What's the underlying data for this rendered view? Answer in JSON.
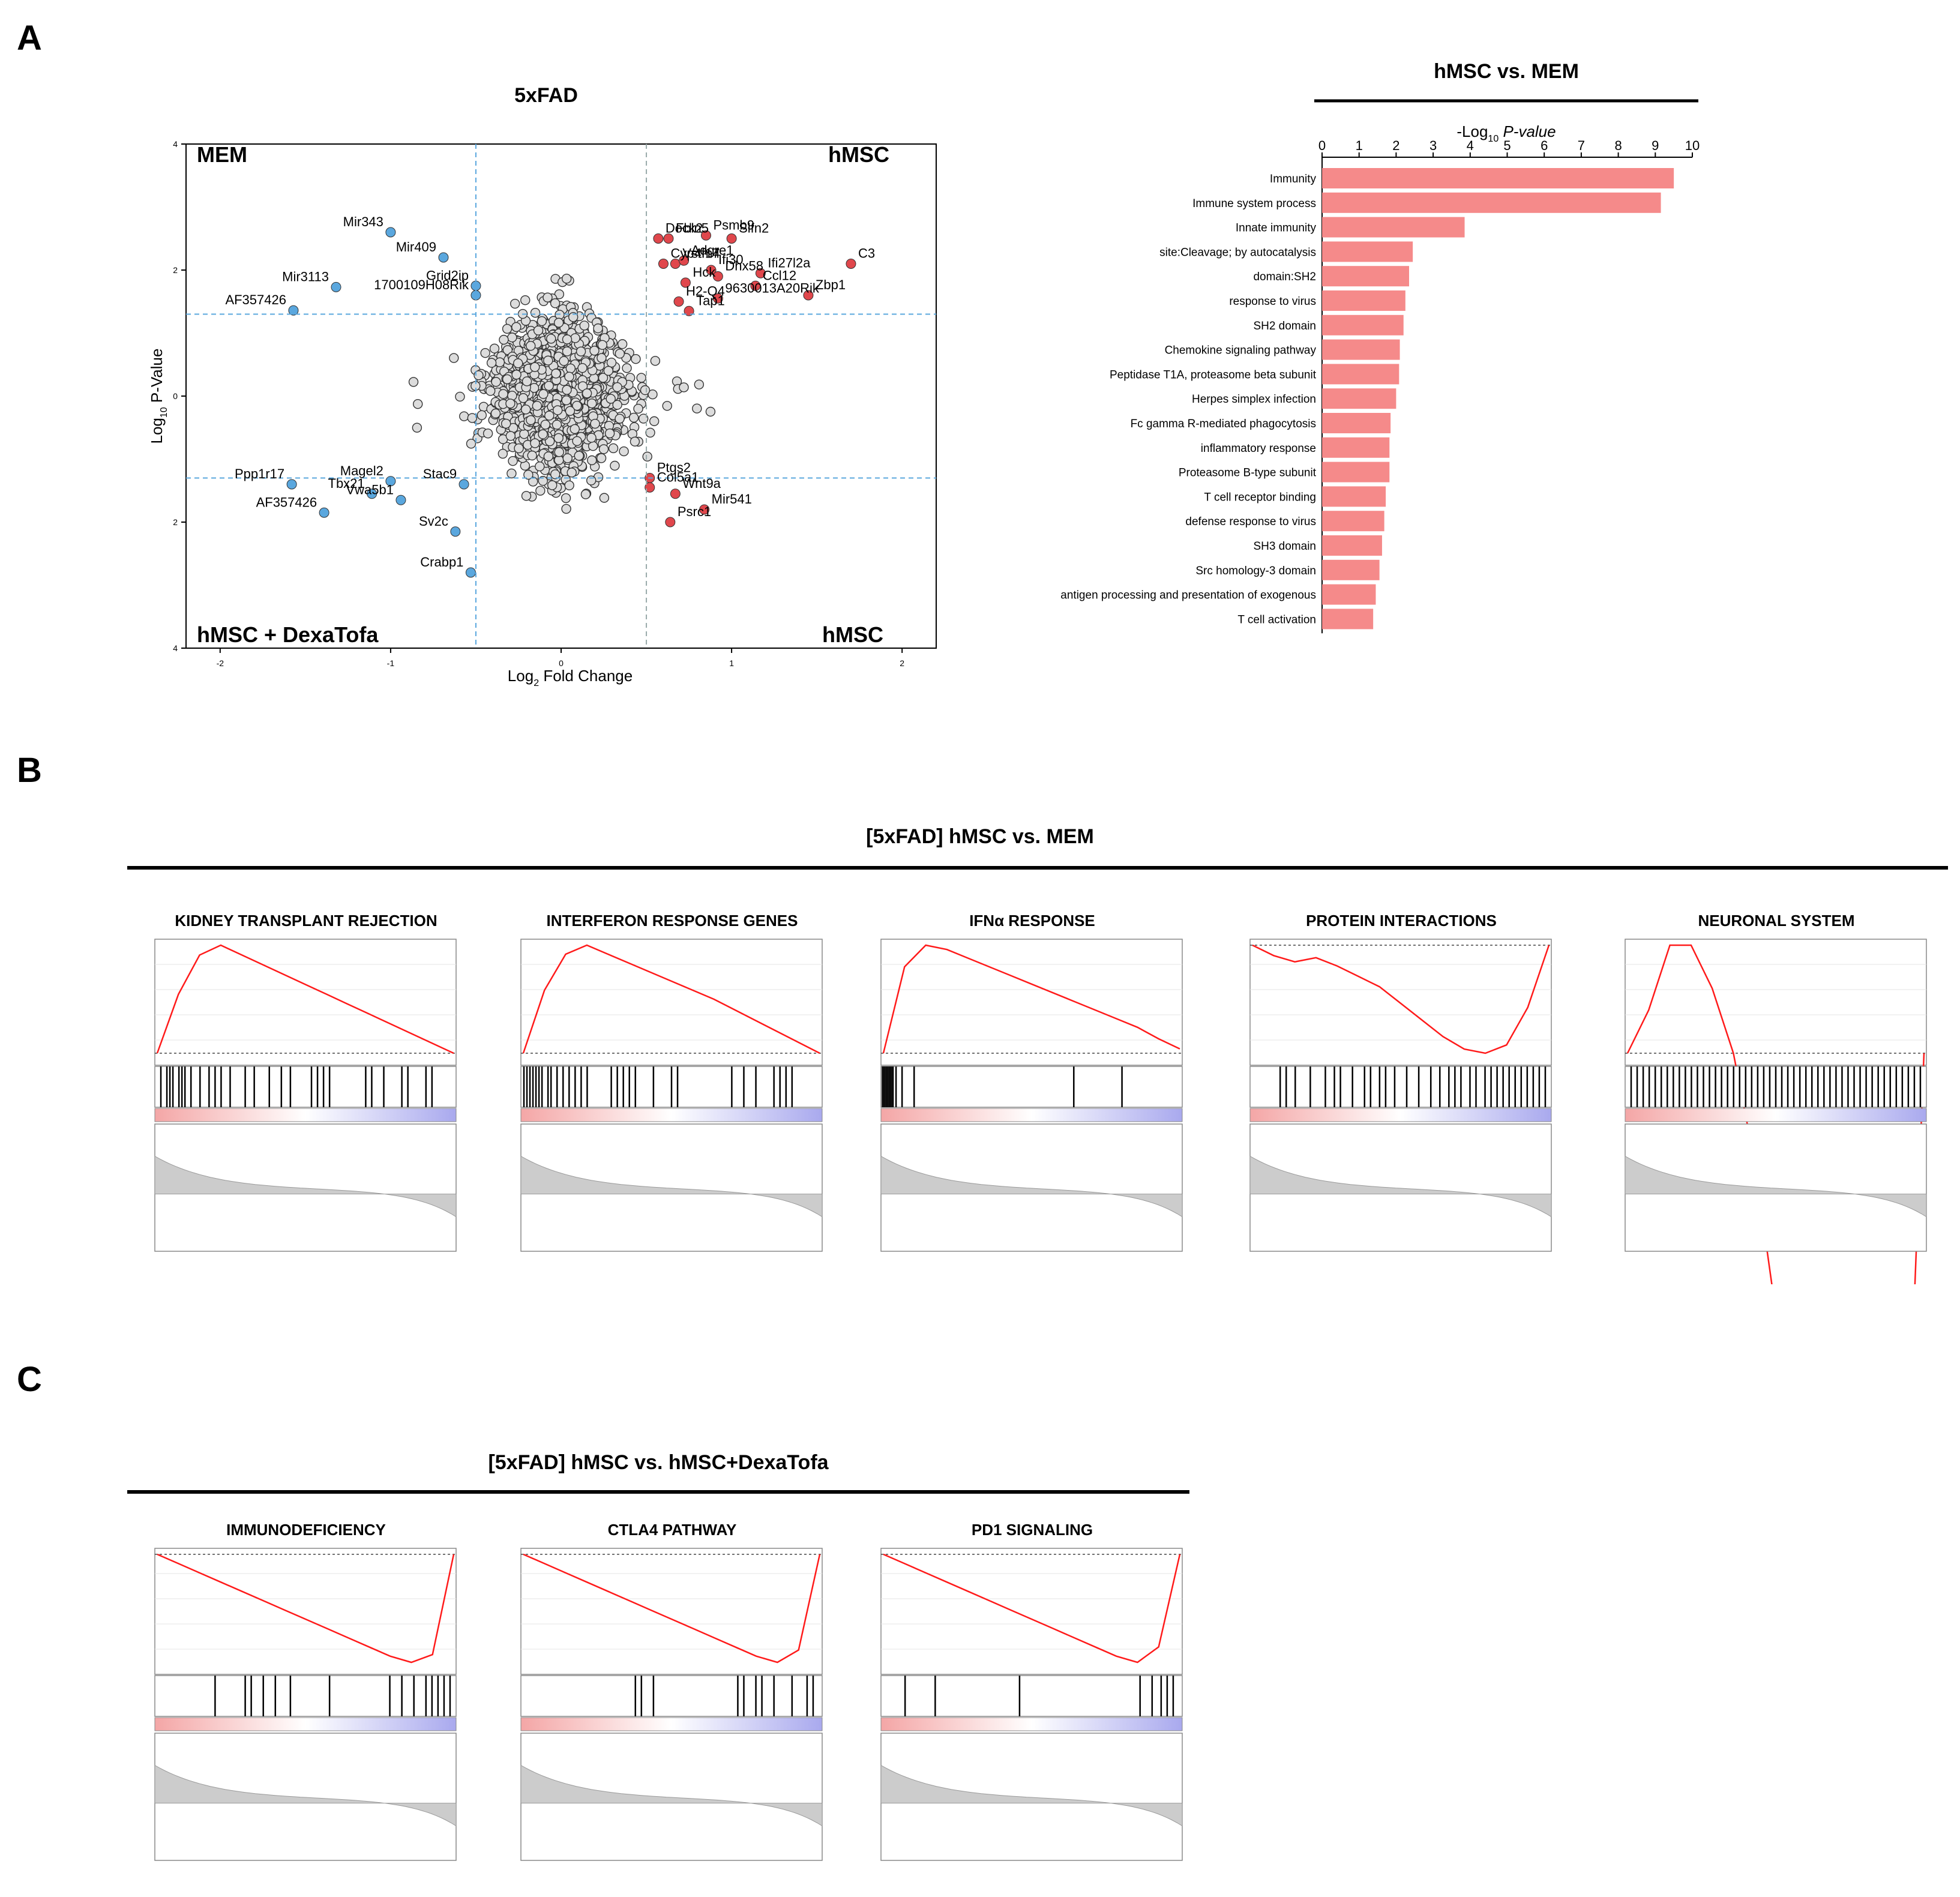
{
  "panels": {
    "a": "A",
    "b": "B",
    "c": "C"
  },
  "colors": {
    "up": "#e0474c",
    "down": "#5aa7de",
    "bar": "#f58a8a",
    "es_line": "#ff1a1a",
    "metric": "#cccccc"
  },
  "volcano": {
    "title": "5xFAD",
    "quadrant_top_left": "MEM",
    "quadrant_top_right": "hMSC",
    "quadrant_bottom_left": "hMSC + DexaTofa",
    "quadrant_bottom_right": "hMSC",
    "xlabel_pre": "Log",
    "xlabel_sub": "2",
    "xlabel_post": " Fold Change",
    "ylabel_pre": "Log",
    "ylabel_sub": "10",
    "ylabel_post": " P-Value"
  },
  "bars": {
    "title": "hMSC vs. MEM",
    "axis_title_pre": "-Log",
    "axis_title_sub": "10",
    "axis_title_post": " P-value"
  },
  "section_b": {
    "title": "[5xFAD] hMSC vs. MEM"
  },
  "section_c": {
    "title": "[5xFAD] hMSC vs. hMSC+DexaTofa"
  },
  "chart_data": [
    {
      "type": "scatter",
      "title": "5xFAD",
      "xlabel": "Log2 Fold Change",
      "ylabel": "Log10 P-Value",
      "xlim": [
        -2.2,
        2.2
      ],
      "ylim": [
        -4,
        4
      ],
      "x_ticks": [
        -2,
        -1,
        0,
        1,
        2
      ],
      "y_ticks": [
        4,
        2,
        0,
        2,
        4
      ],
      "thresholds": {
        "x": [
          -0.5,
          0.5
        ],
        "y": [
          1.3,
          -1.3
        ]
      },
      "labeled_up": [
        {
          "label": "Dock2",
          "x": 0.57,
          "y": 2.5
        },
        {
          "label": "Cyp4f17",
          "x": 0.6,
          "y": 2.1
        },
        {
          "label": "Fbln5",
          "x": 0.63,
          "y": 2.5
        },
        {
          "label": "Vstm4",
          "x": 0.67,
          "y": 2.1
        },
        {
          "label": "H2-Q4",
          "x": 0.69,
          "y": 1.5
        },
        {
          "label": "Psmb9",
          "x": 0.85,
          "y": 2.55
        },
        {
          "label": "Slfn2",
          "x": 1.0,
          "y": 2.5
        },
        {
          "label": "Adgre1",
          "x": 0.72,
          "y": 2.15
        },
        {
          "label": "Ifi30",
          "x": 0.88,
          "y": 2.0
        },
        {
          "label": "Ifi27l2a",
          "x": 1.17,
          "y": 1.95
        },
        {
          "label": "C3",
          "x": 1.7,
          "y": 2.1
        },
        {
          "label": "Hck",
          "x": 0.73,
          "y": 1.8
        },
        {
          "label": "Dhx58",
          "x": 0.92,
          "y": 1.9
        },
        {
          "label": "Ccl12",
          "x": 1.14,
          "y": 1.75
        },
        {
          "label": "Zbp1",
          "x": 1.45,
          "y": 1.6
        },
        {
          "label": "9630013A20Rik",
          "x": 0.92,
          "y": 1.55
        },
        {
          "label": "Tap1",
          "x": 0.75,
          "y": 1.35
        }
      ],
      "labeled_down": [
        {
          "label": "Mir343",
          "x": -1.0,
          "y": 2.6
        },
        {
          "label": "Mir409",
          "x": -0.69,
          "y": 2.2
        },
        {
          "label": "Grid2ip",
          "x": -0.5,
          "y": 1.75
        },
        {
          "label": "Mir3113",
          "x": -1.32,
          "y": 1.73
        },
        {
          "label": "1700109H08Rik",
          "x": -0.5,
          "y": 1.6
        },
        {
          "label": "AF357426",
          "x": -1.57,
          "y": 1.36
        },
        {
          "label": "Magel2",
          "x": -1.0,
          "y": -1.35
        },
        {
          "label": "Ppp1r17",
          "x": -1.58,
          "y": -1.4
        },
        {
          "label": "Tbx21",
          "x": -1.11,
          "y": -1.55
        },
        {
          "label": "Stac9",
          "x": -0.57,
          "y": -1.4
        },
        {
          "label": "Vwa5b1",
          "x": -0.94,
          "y": -1.65
        },
        {
          "label": "AF357426",
          "x": -1.39,
          "y": -1.85
        },
        {
          "label": "Sv2c",
          "x": -0.62,
          "y": -2.15
        },
        {
          "label": "Crabp1",
          "x": -0.53,
          "y": -2.8
        }
      ],
      "labeled_other": [
        {
          "label": "Ptgs2",
          "x": 0.52,
          "y": -1.3
        },
        {
          "label": "Col5a1",
          "x": 0.52,
          "y": -1.45
        },
        {
          "label": "Wnt9a",
          "x": 0.67,
          "y": -1.55
        },
        {
          "label": "Mir541",
          "x": 0.84,
          "y": -1.8
        },
        {
          "label": "Psrc1",
          "x": 0.64,
          "y": -2.0
        }
      ]
    },
    {
      "type": "bar",
      "title": "hMSC vs. MEM",
      "xlabel": "-Log10 P-value",
      "xlim": [
        0,
        10
      ],
      "x_ticks": [
        0,
        1,
        2,
        3,
        4,
        5,
        6,
        7,
        8,
        9,
        10
      ],
      "categories": [
        "Immunity",
        "Immune system process",
        "Innate immunity",
        "site:Cleavage; by autocatalysis",
        "domain:SH2",
        "response to virus",
        "SH2 domain",
        "Chemokine signaling pathway",
        "Peptidase T1A, proteasome beta subunit",
        "Herpes simplex infection",
        "Fc gamma R-mediated phagocytosis",
        "inflammatory response",
        "Proteasome B-type subunit",
        "T cell receptor binding",
        "defense response to virus",
        "SH3 domain",
        "Src homology-3 domain",
        "antigen processing and presentation of exogenous",
        "T cell activation"
      ],
      "values": [
        9.5,
        9.15,
        3.85,
        2.45,
        2.35,
        2.25,
        2.2,
        2.1,
        2.08,
        2.0,
        1.85,
        1.82,
        1.82,
        1.72,
        1.68,
        1.62,
        1.55,
        1.45,
        1.38
      ]
    },
    {
      "type": "line",
      "title": "KIDNEY TRANSPLANT REJECTION",
      "series": [
        {
          "values": [
            0,
            0.3,
            0.5,
            0.55,
            0.5,
            0.45,
            0.4,
            0.35,
            0.3,
            0.25,
            0.2,
            0.15,
            0.1,
            0.05,
            0
          ]
        }
      ],
      "hit_positions": [
        0.02,
        0.04,
        0.05,
        0.06,
        0.08,
        0.09,
        0.1,
        0.12,
        0.15,
        0.18,
        0.2,
        0.22,
        0.25,
        0.3,
        0.33,
        0.38,
        0.42,
        0.45,
        0.52,
        0.54,
        0.56,
        0.58,
        0.7,
        0.72,
        0.76,
        0.82,
        0.84,
        0.9,
        0.92
      ]
    },
    {
      "type": "line",
      "title": "INTERFERON RESPONSE GENES",
      "series": [
        {
          "values": [
            0,
            0.35,
            0.55,
            0.6,
            0.55,
            0.5,
            0.45,
            0.4,
            0.35,
            0.3,
            0.24,
            0.18,
            0.12,
            0.06,
            0
          ]
        }
      ],
      "hit_positions": [
        0.01,
        0.02,
        0.03,
        0.04,
        0.05,
        0.06,
        0.07,
        0.09,
        0.1,
        0.12,
        0.14,
        0.16,
        0.18,
        0.2,
        0.22,
        0.3,
        0.32,
        0.34,
        0.36,
        0.38,
        0.44,
        0.5,
        0.52,
        0.7,
        0.74,
        0.78,
        0.84,
        0.86,
        0.88,
        0.9
      ]
    },
    {
      "type": "line",
      "title": "IFNα RESPONSE",
      "series": [
        {
          "values": [
            0,
            0.6,
            0.75,
            0.72,
            0.66,
            0.6,
            0.54,
            0.48,
            0.42,
            0.36,
            0.3,
            0.24,
            0.18,
            0.1,
            0.03
          ]
        }
      ],
      "hit_positions": [
        0.005,
        0.01,
        0.015,
        0.02,
        0.025,
        0.03,
        0.035,
        0.04,
        0.05,
        0.07,
        0.11,
        0.64,
        0.8
      ]
    },
    {
      "type": "line",
      "title": "PROTEIN INTERACTIONS",
      "series": [
        {
          "values": [
            0,
            -0.05,
            -0.08,
            -0.06,
            -0.1,
            -0.15,
            -0.2,
            -0.28,
            -0.36,
            -0.44,
            -0.5,
            -0.52,
            -0.48,
            -0.3,
            0
          ]
        }
      ],
      "hit_positions": [
        0.1,
        0.12,
        0.15,
        0.2,
        0.25,
        0.28,
        0.3,
        0.34,
        0.38,
        0.4,
        0.43,
        0.45,
        0.48,
        0.52,
        0.56,
        0.6,
        0.63,
        0.66,
        0.68,
        0.7,
        0.73,
        0.75,
        0.78,
        0.8,
        0.82,
        0.84,
        0.86,
        0.88,
        0.9,
        0.92,
        0.94,
        0.96,
        0.98
      ]
    },
    {
      "type": "line",
      "title": "NEURONAL SYSTEM",
      "series": [
        {
          "values": [
            0,
            0.02,
            0.05,
            0.05,
            0.03,
            0.0,
            -0.05,
            -0.12,
            -0.2,
            -0.28,
            -0.35,
            -0.38,
            -0.35,
            -0.25,
            0
          ]
        }
      ],
      "hit_positions": [
        0.02,
        0.04,
        0.06,
        0.08,
        0.1,
        0.12,
        0.14,
        0.16,
        0.18,
        0.2,
        0.22,
        0.24,
        0.26,
        0.28,
        0.3,
        0.32,
        0.34,
        0.36,
        0.38,
        0.4,
        0.42,
        0.44,
        0.46,
        0.48,
        0.5,
        0.52,
        0.54,
        0.56,
        0.58,
        0.6,
        0.62,
        0.64,
        0.66,
        0.68,
        0.7,
        0.72,
        0.74,
        0.76,
        0.78,
        0.8,
        0.82,
        0.84,
        0.86,
        0.88,
        0.9,
        0.92,
        0.94,
        0.96,
        0.98
      ]
    },
    {
      "type": "line",
      "title": "IMMUNODEFICIENCY",
      "series": [
        {
          "values": [
            0,
            -0.06,
            -0.12,
            -0.18,
            -0.24,
            -0.3,
            -0.36,
            -0.42,
            -0.48,
            -0.54,
            -0.6,
            -0.66,
            -0.7,
            -0.65,
            0
          ]
        }
      ],
      "hit_positions": [
        0.2,
        0.3,
        0.32,
        0.36,
        0.4,
        0.45,
        0.58,
        0.78,
        0.82,
        0.86,
        0.9,
        0.92,
        0.94,
        0.96,
        0.98
      ]
    },
    {
      "type": "line",
      "title": "CTLA4 PATHWAY",
      "series": [
        {
          "values": [
            0,
            -0.06,
            -0.12,
            -0.18,
            -0.24,
            -0.3,
            -0.36,
            -0.42,
            -0.48,
            -0.54,
            -0.6,
            -0.66,
            -0.7,
            -0.62,
            0
          ]
        }
      ],
      "hit_positions": [
        0.38,
        0.4,
        0.44,
        0.72,
        0.74,
        0.78,
        0.8,
        0.84,
        0.9,
        0.95,
        0.97
      ]
    },
    {
      "type": "line",
      "title": "PD1 SIGNALING",
      "series": [
        {
          "values": [
            0,
            -0.06,
            -0.12,
            -0.18,
            -0.24,
            -0.3,
            -0.36,
            -0.42,
            -0.48,
            -0.54,
            -0.6,
            -0.66,
            -0.7,
            -0.6,
            0
          ]
        }
      ],
      "hit_positions": [
        0.08,
        0.18,
        0.46,
        0.86,
        0.9,
        0.93,
        0.95,
        0.97
      ]
    }
  ]
}
